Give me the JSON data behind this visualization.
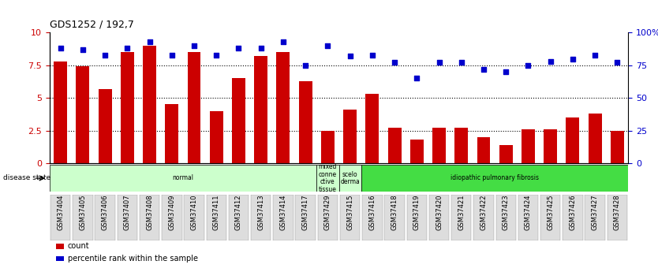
{
  "title": "GDS1252 / 192,7",
  "samples": [
    "GSM37404",
    "GSM37405",
    "GSM37406",
    "GSM37407",
    "GSM37408",
    "GSM37409",
    "GSM37410",
    "GSM37411",
    "GSM37412",
    "GSM37413",
    "GSM37414",
    "GSM37417",
    "GSM37429",
    "GSM37415",
    "GSM37416",
    "GSM37418",
    "GSM37419",
    "GSM37420",
    "GSM37421",
    "GSM37422",
    "GSM37423",
    "GSM37424",
    "GSM37425",
    "GSM37426",
    "GSM37427",
    "GSM37428"
  ],
  "bar_values": [
    7.8,
    7.4,
    5.7,
    8.5,
    9.0,
    4.5,
    8.5,
    4.0,
    6.5,
    8.2,
    8.5,
    6.3,
    2.5,
    4.1,
    5.3,
    2.7,
    1.8,
    2.7,
    2.7,
    2.0,
    1.4,
    2.6,
    2.6,
    3.5,
    3.8,
    2.5
  ],
  "scatter_values": [
    88,
    87,
    83,
    88,
    93,
    83,
    90,
    83,
    88,
    88,
    93,
    75,
    90,
    82,
    83,
    77,
    65,
    77,
    77,
    72,
    70,
    75,
    78,
    80,
    83,
    77
  ],
  "bar_color": "#cc0000",
  "scatter_color": "#0000cc",
  "ylim_left": [
    0,
    10
  ],
  "ylim_right": [
    0,
    100
  ],
  "yticks_left": [
    0,
    2.5,
    5.0,
    7.5,
    10
  ],
  "ytick_labels_left": [
    "0",
    "2.5",
    "5",
    "7.5",
    "10"
  ],
  "yticks_right": [
    0,
    25,
    50,
    75,
    100
  ],
  "ytick_labels_right": [
    "0",
    "25",
    "50",
    "75",
    "100%"
  ],
  "disease_groups": [
    {
      "label": "normal",
      "start": 0,
      "end": 12,
      "color": "#ccffcc",
      "text_color": "#000000"
    },
    {
      "label": "mixed\nconne\nctive\ntissue",
      "start": 12,
      "end": 13,
      "color": "#ccffcc",
      "text_color": "#000000"
    },
    {
      "label": "scelo\nderma",
      "start": 13,
      "end": 14,
      "color": "#ccffcc",
      "text_color": "#000000"
    },
    {
      "label": "idiopathic pulmonary fibrosis",
      "start": 14,
      "end": 26,
      "color": "#44dd44",
      "text_color": "#000000"
    }
  ],
  "disease_state_label": "disease state",
  "legend_items": [
    {
      "label": "count",
      "color": "#cc0000"
    },
    {
      "label": "percentile rank within the sample",
      "color": "#0000cc"
    }
  ],
  "bg_color": "#ffffff",
  "axis_label_color_left": "#cc0000",
  "axis_label_color_right": "#0000cc"
}
